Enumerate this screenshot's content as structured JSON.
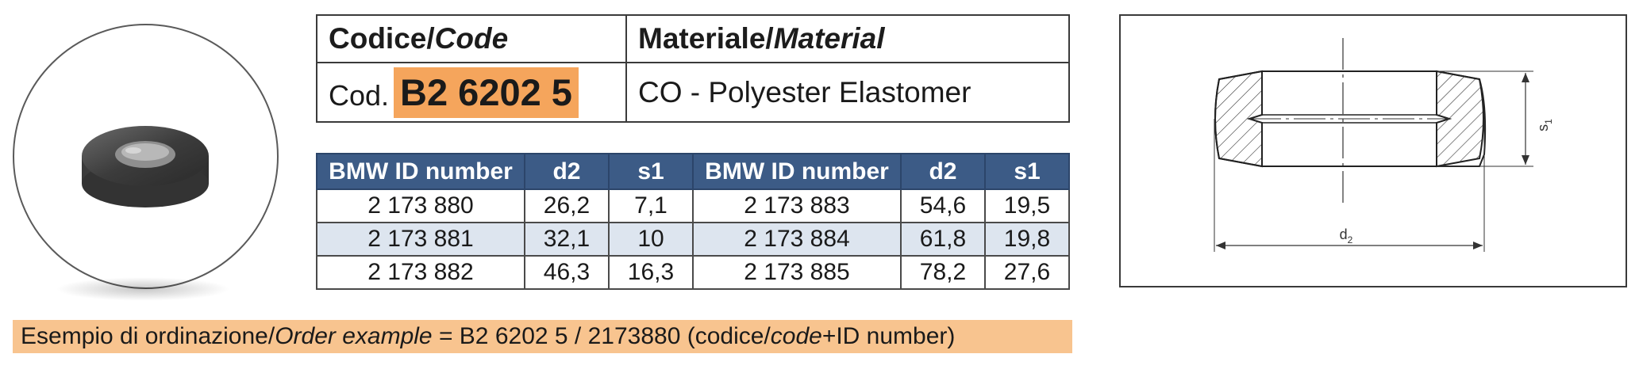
{
  "header": {
    "code_label_it": "Codice/",
    "code_label_en": "Code",
    "material_label_it": "Materiale/",
    "material_label_en": "Material",
    "code_prefix": "Cod.",
    "code_value": "B2 6202 5",
    "material_value": "CO - Polyester Elastomer"
  },
  "table": {
    "headers": [
      "BMW ID number",
      "d2",
      "s1",
      "BMW ID number",
      "d2",
      "s1"
    ],
    "rows": [
      [
        "2 173 880",
        "26,2",
        "7,1",
        "2 173 883",
        "54,6",
        "19,5"
      ],
      [
        "2 173 881",
        "32,1",
        "10",
        "2 173 884",
        "61,8",
        "19,8"
      ],
      [
        "2 173 882",
        "46,3",
        "16,3",
        "2 173 885",
        "78,2",
        "27,6"
      ]
    ]
  },
  "drawing": {
    "label_d": "d",
    "label_d_sub": "2",
    "label_s": "s",
    "label_s_sub": "1"
  },
  "order_example": {
    "part1": "Esempio di ordinazione/",
    "part2": "Order example",
    "part3": " = B2 6202 5 / 2173880 (codice/",
    "part4": "code",
    "part5": "+ID number)"
  },
  "colors": {
    "header_bg": "#3c5b86",
    "alt_row_bg": "#dde5ef",
    "code_highlight": "#f5a55c",
    "order_bg": "#f8c48f"
  }
}
